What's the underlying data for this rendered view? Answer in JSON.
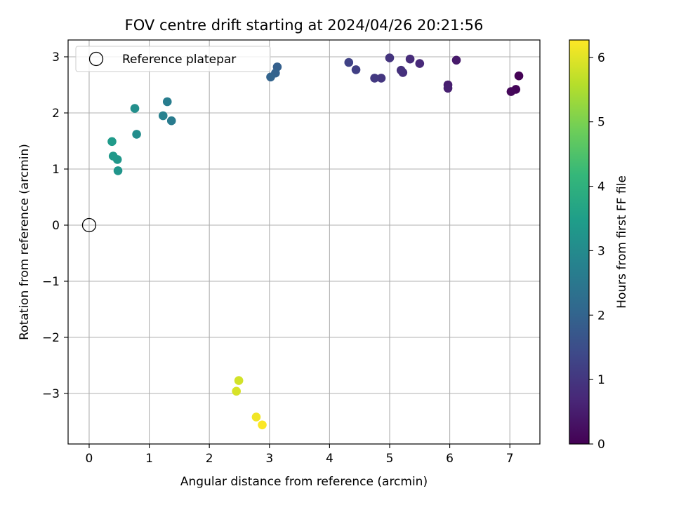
{
  "chart_data": {
    "type": "scatter",
    "title": "FOV centre drift starting at 2024/04/26 20:21:56",
    "xlabel": "Angular distance from reference (arcmin)",
    "ylabel": "Rotation from reference (arcmin)",
    "xlim": [
      -0.35,
      7.5
    ],
    "ylim": [
      -3.9,
      3.3
    ],
    "xticks": [
      0,
      1,
      2,
      3,
      4,
      5,
      6,
      7
    ],
    "yticks": [
      -3,
      -2,
      -1,
      0,
      1,
      2,
      3
    ],
    "xtick_labels": [
      "0",
      "1",
      "2",
      "3",
      "4",
      "5",
      "6",
      "7"
    ],
    "ytick_labels": [
      "−3",
      "−2",
      "−1",
      "0",
      "1",
      "2",
      "3"
    ],
    "grid": true,
    "colormap": "viridis",
    "viridis_stops": [
      "#440154",
      "#482878",
      "#3e4989",
      "#31688e",
      "#26828e",
      "#1f9e89",
      "#35b779",
      "#6ece58",
      "#b5de2b",
      "#fde725"
    ],
    "colorbar": {
      "label": "Hours from first FF file",
      "range": [
        0,
        6.27
      ],
      "ticks": [
        0,
        1,
        2,
        3,
        4,
        5,
        6
      ],
      "tick_labels": [
        "0",
        "1",
        "2",
        "3",
        "4",
        "5",
        "6"
      ]
    },
    "legend": {
      "location": "upper-left",
      "entries": [
        {
          "label": "Reference platepar",
          "marker": "open-circle"
        }
      ]
    },
    "reference_point": {
      "x": 0,
      "y": 0
    },
    "points": [
      {
        "x": 7.15,
        "y": 2.66,
        "c": 0.02
      },
      {
        "x": 7.1,
        "y": 2.42,
        "c": 0.08
      },
      {
        "x": 7.02,
        "y": 2.38,
        "c": 0.12
      },
      {
        "x": 6.11,
        "y": 2.94,
        "c": 0.45
      },
      {
        "x": 5.97,
        "y": 2.5,
        "c": 0.5
      },
      {
        "x": 5.97,
        "y": 2.44,
        "c": 0.55
      },
      {
        "x": 5.5,
        "y": 2.88,
        "c": 0.72
      },
      {
        "x": 5.34,
        "y": 2.96,
        "c": 0.78
      },
      {
        "x": 5.22,
        "y": 2.72,
        "c": 0.85
      },
      {
        "x": 5.19,
        "y": 2.76,
        "c": 0.88
      },
      {
        "x": 5.0,
        "y": 2.98,
        "c": 0.95
      },
      {
        "x": 4.86,
        "y": 2.62,
        "c": 1.0
      },
      {
        "x": 4.75,
        "y": 2.62,
        "c": 1.05
      },
      {
        "x": 4.44,
        "y": 2.77,
        "c": 1.18
      },
      {
        "x": 4.32,
        "y": 2.9,
        "c": 1.25
      },
      {
        "x": 3.13,
        "y": 2.82,
        "c": 1.9
      },
      {
        "x": 3.1,
        "y": 2.71,
        "c": 1.95
      },
      {
        "x": 3.02,
        "y": 2.64,
        "c": 2.0
      },
      {
        "x": 1.37,
        "y": 1.86,
        "c": 2.6
      },
      {
        "x": 1.3,
        "y": 2.2,
        "c": 2.65
      },
      {
        "x": 1.23,
        "y": 1.95,
        "c": 2.75
      },
      {
        "x": 0.79,
        "y": 1.62,
        "c": 3.05
      },
      {
        "x": 0.76,
        "y": 2.08,
        "c": 3.1
      },
      {
        "x": 0.48,
        "y": 0.97,
        "c": 3.25
      },
      {
        "x": 0.47,
        "y": 1.17,
        "c": 3.3
      },
      {
        "x": 0.4,
        "y": 1.23,
        "c": 3.35
      },
      {
        "x": 0.38,
        "y": 1.49,
        "c": 3.4
      },
      {
        "x": 2.49,
        "y": -2.77,
        "c": 5.85
      },
      {
        "x": 2.45,
        "y": -2.96,
        "c": 5.9
      },
      {
        "x": 2.78,
        "y": -3.42,
        "c": 6.15
      },
      {
        "x": 2.88,
        "y": -3.56,
        "c": 6.25
      }
    ]
  }
}
